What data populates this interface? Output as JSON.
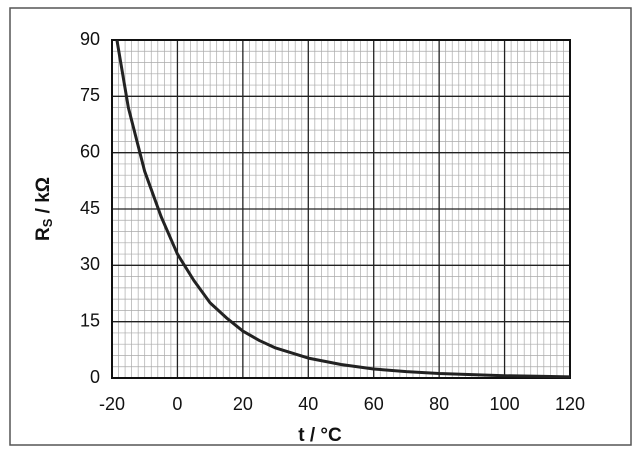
{
  "chart_data": {
    "type": "line",
    "x_label": "t / °C",
    "y_label": {
      "main": "R",
      "sub": "S",
      "rest": " / kΩ"
    },
    "x": [
      -18.5,
      -15,
      -10,
      -5,
      0,
      5,
      10,
      15,
      20,
      25,
      30,
      40,
      50,
      60,
      70,
      80,
      90,
      100,
      110,
      120
    ],
    "series": [
      {
        "color": "#222222",
        "values": [
          90,
          72,
          55,
          43,
          33,
          26,
          20,
          16,
          12.5,
          10,
          8,
          5.3,
          3.6,
          2.4,
          1.7,
          1.2,
          0.9,
          0.6,
          0.45,
          0.3
        ]
      }
    ],
    "xlim": [
      -20,
      120
    ],
    "xticks": [
      -20,
      0,
      20,
      40,
      60,
      80,
      100,
      120
    ],
    "ylim": [
      0,
      90
    ],
    "yticks": [
      0,
      15,
      30,
      45,
      60,
      75,
      90
    ],
    "grid": true,
    "minor_grid": true
  }
}
